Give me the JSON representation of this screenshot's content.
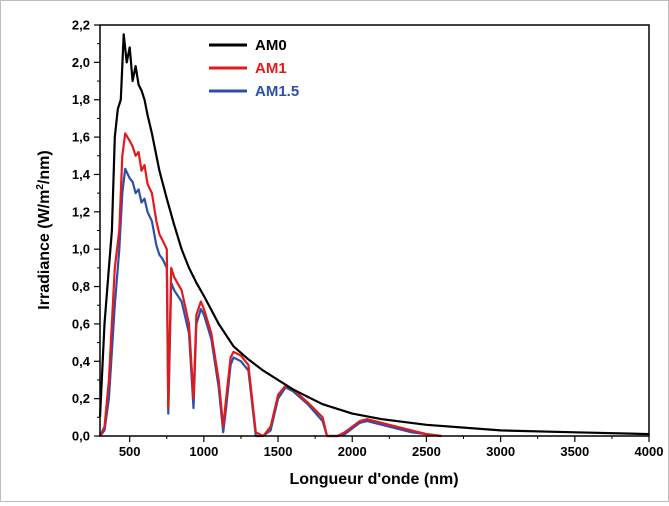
{
  "chart_data": {
    "type": "line",
    "title": "",
    "xlabel": "Longueur d'onde (nm)",
    "ylabel": {
      "main": "Irradiance (W/m",
      "sup": "2",
      "tail": "/nm)"
    },
    "xlim": [
      300,
      4000
    ],
    "ylim": [
      0,
      2.2
    ],
    "xticks": [
      500,
      1000,
      1500,
      2000,
      2500,
      3000,
      3500,
      4000
    ],
    "xtick_labels": [
      "500",
      "1000",
      "1500",
      "2000",
      "2500",
      "3000",
      "3500",
      "4000"
    ],
    "yticks": [
      0,
      0.2,
      0.4,
      0.6,
      0.8,
      1.0,
      1.2,
      1.4,
      1.6,
      1.8,
      2.0,
      2.2
    ],
    "ytick_labels": [
      "0,0",
      "0,2",
      "0,4",
      "0,6",
      "0,8",
      "1,0",
      "1,2",
      "1,4",
      "1,6",
      "1,8",
      "2,0",
      "2,2"
    ],
    "legend_position": "top-left",
    "grid": false,
    "series": [
      {
        "name": "AM0",
        "color": "#000000",
        "x": [
          300,
          330,
          360,
          380,
          400,
          420,
          440,
          460,
          480,
          500,
          520,
          540,
          560,
          580,
          600,
          620,
          650,
          700,
          750,
          800,
          850,
          900,
          950,
          1000,
          1100,
          1200,
          1300,
          1400,
          1500,
          1600,
          1700,
          1800,
          2000,
          2200,
          2500,
          3000,
          3500,
          4000
        ],
        "y": [
          0.1,
          0.6,
          0.9,
          1.1,
          1.6,
          1.75,
          1.8,
          2.15,
          2.0,
          2.08,
          1.9,
          1.98,
          1.88,
          1.85,
          1.8,
          1.72,
          1.62,
          1.42,
          1.27,
          1.13,
          1.0,
          0.9,
          0.82,
          0.75,
          0.6,
          0.48,
          0.41,
          0.35,
          0.3,
          0.25,
          0.21,
          0.17,
          0.12,
          0.09,
          0.06,
          0.03,
          0.02,
          0.01
        ]
      },
      {
        "name": "AM1",
        "color": "#e41a1a",
        "x": [
          300,
          330,
          360,
          400,
          430,
          450,
          470,
          500,
          520,
          540,
          560,
          580,
          600,
          620,
          650,
          680,
          700,
          720,
          750,
          760,
          780,
          800,
          850,
          900,
          930,
          950,
          980,
          1000,
          1050,
          1100,
          1130,
          1150,
          1180,
          1200,
          1250,
          1300,
          1350,
          1400,
          1450,
          1500,
          1550,
          1600,
          1700,
          1800,
          1830,
          1900,
          1950,
          2000,
          2050,
          2100,
          2200,
          2300,
          2400,
          2500,
          2600
        ],
        "y": [
          0,
          0.05,
          0.3,
          0.9,
          1.1,
          1.5,
          1.62,
          1.58,
          1.55,
          1.5,
          1.52,
          1.42,
          1.45,
          1.35,
          1.3,
          1.15,
          1.08,
          1.05,
          1.0,
          0.15,
          0.9,
          0.85,
          0.78,
          0.6,
          0.2,
          0.65,
          0.72,
          0.68,
          0.55,
          0.3,
          0.05,
          0.2,
          0.42,
          0.45,
          0.43,
          0.38,
          0.02,
          0.0,
          0.05,
          0.22,
          0.27,
          0.25,
          0.18,
          0.1,
          0.0,
          0.0,
          0.02,
          0.05,
          0.08,
          0.09,
          0.07,
          0.05,
          0.03,
          0.01,
          0.0
        ]
      },
      {
        "name": "AM1.5",
        "color": "#2b4faa",
        "x": [
          300,
          330,
          360,
          400,
          430,
          450,
          470,
          500,
          520,
          540,
          560,
          580,
          600,
          620,
          650,
          680,
          700,
          720,
          750,
          760,
          780,
          800,
          850,
          900,
          930,
          950,
          980,
          1000,
          1050,
          1100,
          1130,
          1150,
          1180,
          1200,
          1250,
          1300,
          1350,
          1400,
          1450,
          1500,
          1550,
          1600,
          1700,
          1800,
          1830,
          1900,
          1950,
          2000,
          2050,
          2100,
          2200,
          2300,
          2400,
          2500,
          2600
        ],
        "y": [
          0,
          0.03,
          0.2,
          0.7,
          1.0,
          1.3,
          1.43,
          1.38,
          1.36,
          1.3,
          1.32,
          1.25,
          1.27,
          1.2,
          1.15,
          1.02,
          0.97,
          0.95,
          0.9,
          0.12,
          0.82,
          0.78,
          0.72,
          0.55,
          0.15,
          0.6,
          0.68,
          0.65,
          0.52,
          0.26,
          0.02,
          0.15,
          0.38,
          0.42,
          0.4,
          0.35,
          0.0,
          0.0,
          0.03,
          0.2,
          0.26,
          0.24,
          0.17,
          0.08,
          0.0,
          0.0,
          0.01,
          0.04,
          0.07,
          0.08,
          0.06,
          0.04,
          0.02,
          0.01,
          0.0
        ]
      }
    ]
  }
}
